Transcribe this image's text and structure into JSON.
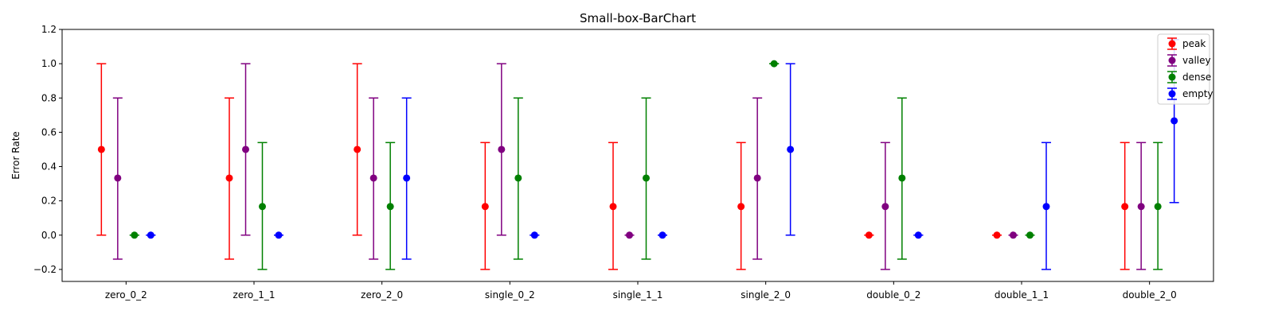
{
  "chart_data": {
    "type": "scatter",
    "title": "Small-box-BarChart",
    "xlabel": "",
    "ylabel": "Error Rate",
    "ylim": [
      -0.27,
      1.2
    ],
    "yticks": [
      -0.2,
      0.0,
      0.2,
      0.4,
      0.6,
      0.8,
      1.0,
      1.2
    ],
    "ytick_labels": [
      "−0.2",
      "0.0",
      "0.2",
      "0.4",
      "0.6",
      "0.8",
      "1.0",
      "1.2"
    ],
    "categories": [
      "zero_0_2",
      "zero_1_1",
      "zero_2_0",
      "single_0_2",
      "single_1_1",
      "single_2_0",
      "double_0_2",
      "double_1_1",
      "double_2_0"
    ],
    "grid": false,
    "legend_position": "top-right",
    "series": [
      {
        "name": "peak",
        "color": "#ff0000",
        "values": [
          0.5,
          0.333,
          0.5,
          0.167,
          0.167,
          0.167,
          0.0,
          0.0,
          0.167
        ],
        "lower": [
          0.0,
          -0.14,
          0.0,
          -0.2,
          -0.2,
          -0.2,
          0.0,
          0.0,
          -0.2
        ],
        "upper": [
          1.0,
          0.8,
          1.0,
          0.54,
          0.54,
          0.54,
          0.0,
          0.0,
          0.54
        ]
      },
      {
        "name": "valley",
        "color": "#800080",
        "values": [
          0.333,
          0.5,
          0.333,
          0.5,
          0.0,
          0.333,
          0.167,
          0.0,
          0.167
        ],
        "lower": [
          -0.14,
          0.0,
          -0.14,
          0.0,
          0.0,
          -0.14,
          -0.2,
          0.0,
          -0.2
        ],
        "upper": [
          0.8,
          1.0,
          0.8,
          1.0,
          0.0,
          0.8,
          0.54,
          0.0,
          0.54
        ]
      },
      {
        "name": "dense",
        "color": "#008000",
        "values": [
          0.0,
          0.167,
          0.167,
          0.333,
          0.333,
          1.0,
          0.333,
          0.0,
          0.167
        ],
        "lower": [
          0.0,
          -0.2,
          -0.2,
          -0.14,
          -0.14,
          1.0,
          -0.14,
          0.0,
          -0.2
        ],
        "upper": [
          0.0,
          0.54,
          0.54,
          0.8,
          0.8,
          1.0,
          0.8,
          0.0,
          0.54
        ]
      },
      {
        "name": "empty",
        "color": "#0000ff",
        "values": [
          0.0,
          0.0,
          0.333,
          0.0,
          0.0,
          0.5,
          0.0,
          0.167,
          0.667
        ],
        "lower": [
          0.0,
          0.0,
          -0.14,
          0.0,
          0.0,
          0.0,
          0.0,
          -0.2,
          0.19
        ],
        "upper": [
          0.0,
          0.0,
          0.8,
          0.0,
          0.0,
          1.0,
          0.0,
          0.54,
          1.14
        ]
      }
    ]
  }
}
